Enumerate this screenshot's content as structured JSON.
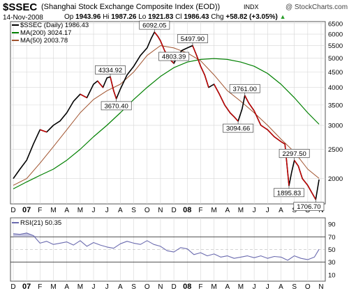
{
  "header": {
    "ticker": "$SSEC",
    "title": "(Shanghai Stock Exchange Composite Index (EOD))",
    "exchange": "INDX",
    "watermark": "@ StockCharts.com",
    "date": "14-Nov-2008",
    "open_label": "Op",
    "open": "1943.96",
    "high_label": "Hi",
    "high": "1987.26",
    "low_label": "Lo",
    "low": "1921.83",
    "close_label": "Cl",
    "close": "1986.43",
    "change_label": "Chg",
    "change": "+58.82 (+3.05%)",
    "change_icon": "triangle-up-icon"
  },
  "legend": [
    {
      "label": "$SSEC (Daily) 1986.43",
      "color": "#000000"
    },
    {
      "label": "MA(200) 3024.17",
      "color": "#008000"
    },
    {
      "label": "MA(50) 2003.78",
      "color": "#a0522d"
    }
  ],
  "rsi_label": "RSI(21) 50.35",
  "colors": {
    "price": "#000000",
    "price_down": "#cc0000",
    "ma200": "#008000",
    "ma50": "#a0522d",
    "rsi": "#6b6baf",
    "grid": "#d6d6d6"
  },
  "chart_data": [
    {
      "type": "line",
      "title": "$SSEC",
      "x_ticks": [
        "D",
        "07",
        "F",
        "M",
        "A",
        "M",
        "J",
        "J",
        "A",
        "S",
        "O",
        "N",
        "D",
        "08",
        "F",
        "M",
        "A",
        "M",
        "J",
        "J",
        "A",
        "S",
        "O",
        "N"
      ],
      "y_ticks": [
        2000,
        2500,
        3000,
        3500,
        4000,
        4500,
        5000,
        5500,
        6000,
        6500
      ],
      "ylim": [
        1650,
        6600
      ],
      "y_scale": "log",
      "grid": true,
      "legend_position": "top-left",
      "annotations": [
        {
          "x": 7.25,
          "y": 4334.92,
          "text": "4334.92"
        },
        {
          "x": 7.7,
          "y": 3670.4,
          "text": "3670.40"
        },
        {
          "x": 10.55,
          "y": 6092.05,
          "text": "6092.05"
        },
        {
          "x": 12.0,
          "y": 4803.39,
          "text": "4803.39"
        },
        {
          "x": 13.4,
          "y": 5497.9,
          "text": "5497.90"
        },
        {
          "x": 16.8,
          "y": 3094.66,
          "text": "3094.66"
        },
        {
          "x": 17.3,
          "y": 3761.0,
          "text": "3761.00"
        },
        {
          "x": 21.0,
          "y": 2297.5,
          "text": "2297.50"
        },
        {
          "x": 20.6,
          "y": 1895.83,
          "text": "1895.83"
        },
        {
          "x": 22.6,
          "y": 1706.7,
          "text": "1706.70"
        }
      ],
      "series": [
        {
          "name": "$SSEC (Daily)",
          "x": [
            0,
            0.5,
            1,
            1.5,
            2,
            2.5,
            3,
            3.5,
            4,
            4.5,
            5,
            5.5,
            6,
            6.3,
            6.7,
            7,
            7.25,
            7.5,
            7.7,
            8,
            8.5,
            9,
            9.5,
            10,
            10.3,
            10.55,
            10.8,
            11,
            11.3,
            11.6,
            12,
            12.3,
            12.6,
            13,
            13.4,
            13.7,
            14,
            14.3,
            14.6,
            15,
            15.4,
            15.8,
            16.2,
            16.5,
            16.8,
            17.1,
            17.3,
            17.6,
            18,
            18.5,
            19,
            19.5,
            20,
            20.3,
            20.6,
            20.8,
            21,
            21.3,
            21.6,
            22,
            22.3,
            22.6,
            22.85
          ],
          "y": [
            2000,
            2150,
            2300,
            2600,
            2900,
            2850,
            3000,
            3100,
            3300,
            3600,
            3800,
            3700,
            4100,
            4200,
            4000,
            4300,
            4334.92,
            3900,
            3670.4,
            3950,
            4400,
            4700,
            5100,
            5400,
            5800,
            6092.05,
            5900,
            5700,
            5300,
            5000,
            4803.39,
            5100,
            5300,
            5400,
            5497.9,
            5100,
            4700,
            4400,
            4000,
            4100,
            3800,
            3500,
            3300,
            3200,
            3094.66,
            3400,
            3761.0,
            3550,
            3350,
            3000,
            2900,
            2750,
            2650,
            2600,
            1895.83,
            2100,
            2297.5,
            2200,
            2000,
            1900,
            1800,
            1706.7,
            1986.43
          ]
        },
        {
          "name": "MA(200)",
          "x": [
            0,
            1,
            2,
            3,
            4,
            5,
            6,
            7,
            8,
            9,
            10,
            11,
            12,
            13,
            14,
            15,
            16,
            17,
            18,
            19,
            20,
            21,
            22,
            22.85
          ],
          "y": [
            1850,
            1950,
            2050,
            2150,
            2300,
            2500,
            2750,
            3000,
            3300,
            3650,
            4000,
            4350,
            4650,
            4850,
            4950,
            4980,
            4950,
            4850,
            4700,
            4450,
            4100,
            3700,
            3300,
            3024.17
          ]
        },
        {
          "name": "MA(50)",
          "x": [
            0,
            1,
            2,
            3,
            4,
            5,
            6,
            7,
            8,
            9,
            10,
            11,
            12,
            13,
            14,
            15,
            16,
            17,
            18,
            19,
            20,
            21,
            22,
            22.85
          ],
          "y": [
            1900,
            2000,
            2250,
            2550,
            2900,
            3300,
            3650,
            3900,
            4100,
            4500,
            5100,
            5500,
            5400,
            5200,
            4900,
            4400,
            3900,
            3600,
            3300,
            3000,
            2700,
            2450,
            2150,
            2003.78
          ]
        }
      ]
    },
    {
      "type": "line",
      "title": "RSI(21)",
      "x_ticks": [
        "D",
        "07",
        "F",
        "M",
        "A",
        "M",
        "J",
        "J",
        "A",
        "S",
        "O",
        "N",
        "D",
        "08",
        "F",
        "M",
        "A",
        "M",
        "J",
        "J",
        "A",
        "S",
        "O",
        "N"
      ],
      "y_ticks": [
        10,
        30,
        50,
        70,
        90
      ],
      "ylim": [
        0,
        100
      ],
      "reference_lines": [
        30,
        70
      ],
      "grid": true,
      "series": [
        {
          "name": "RSI(21)",
          "x": [
            0,
            0.5,
            1,
            1.5,
            2,
            2.5,
            3,
            3.5,
            4,
            4.5,
            5,
            5.5,
            6,
            6.5,
            7,
            7.5,
            8,
            8.5,
            9,
            9.5,
            10,
            10.5,
            11,
            11.5,
            12,
            12.5,
            13,
            13.5,
            14,
            14.5,
            15,
            15.5,
            16,
            16.5,
            17,
            17.5,
            18,
            18.5,
            19,
            19.5,
            20,
            20.5,
            21,
            21.5,
            22,
            22.5,
            22.85
          ],
          "y": [
            75,
            74,
            76,
            72,
            60,
            63,
            58,
            60,
            62,
            57,
            64,
            55,
            61,
            57,
            54,
            52,
            59,
            63,
            60,
            58,
            64,
            58,
            55,
            48,
            46,
            53,
            51,
            42,
            45,
            40,
            43,
            38,
            40,
            36,
            38,
            40,
            37,
            40,
            36,
            39,
            38,
            33,
            40,
            36,
            34,
            38,
            50.35
          ]
        }
      ]
    }
  ]
}
